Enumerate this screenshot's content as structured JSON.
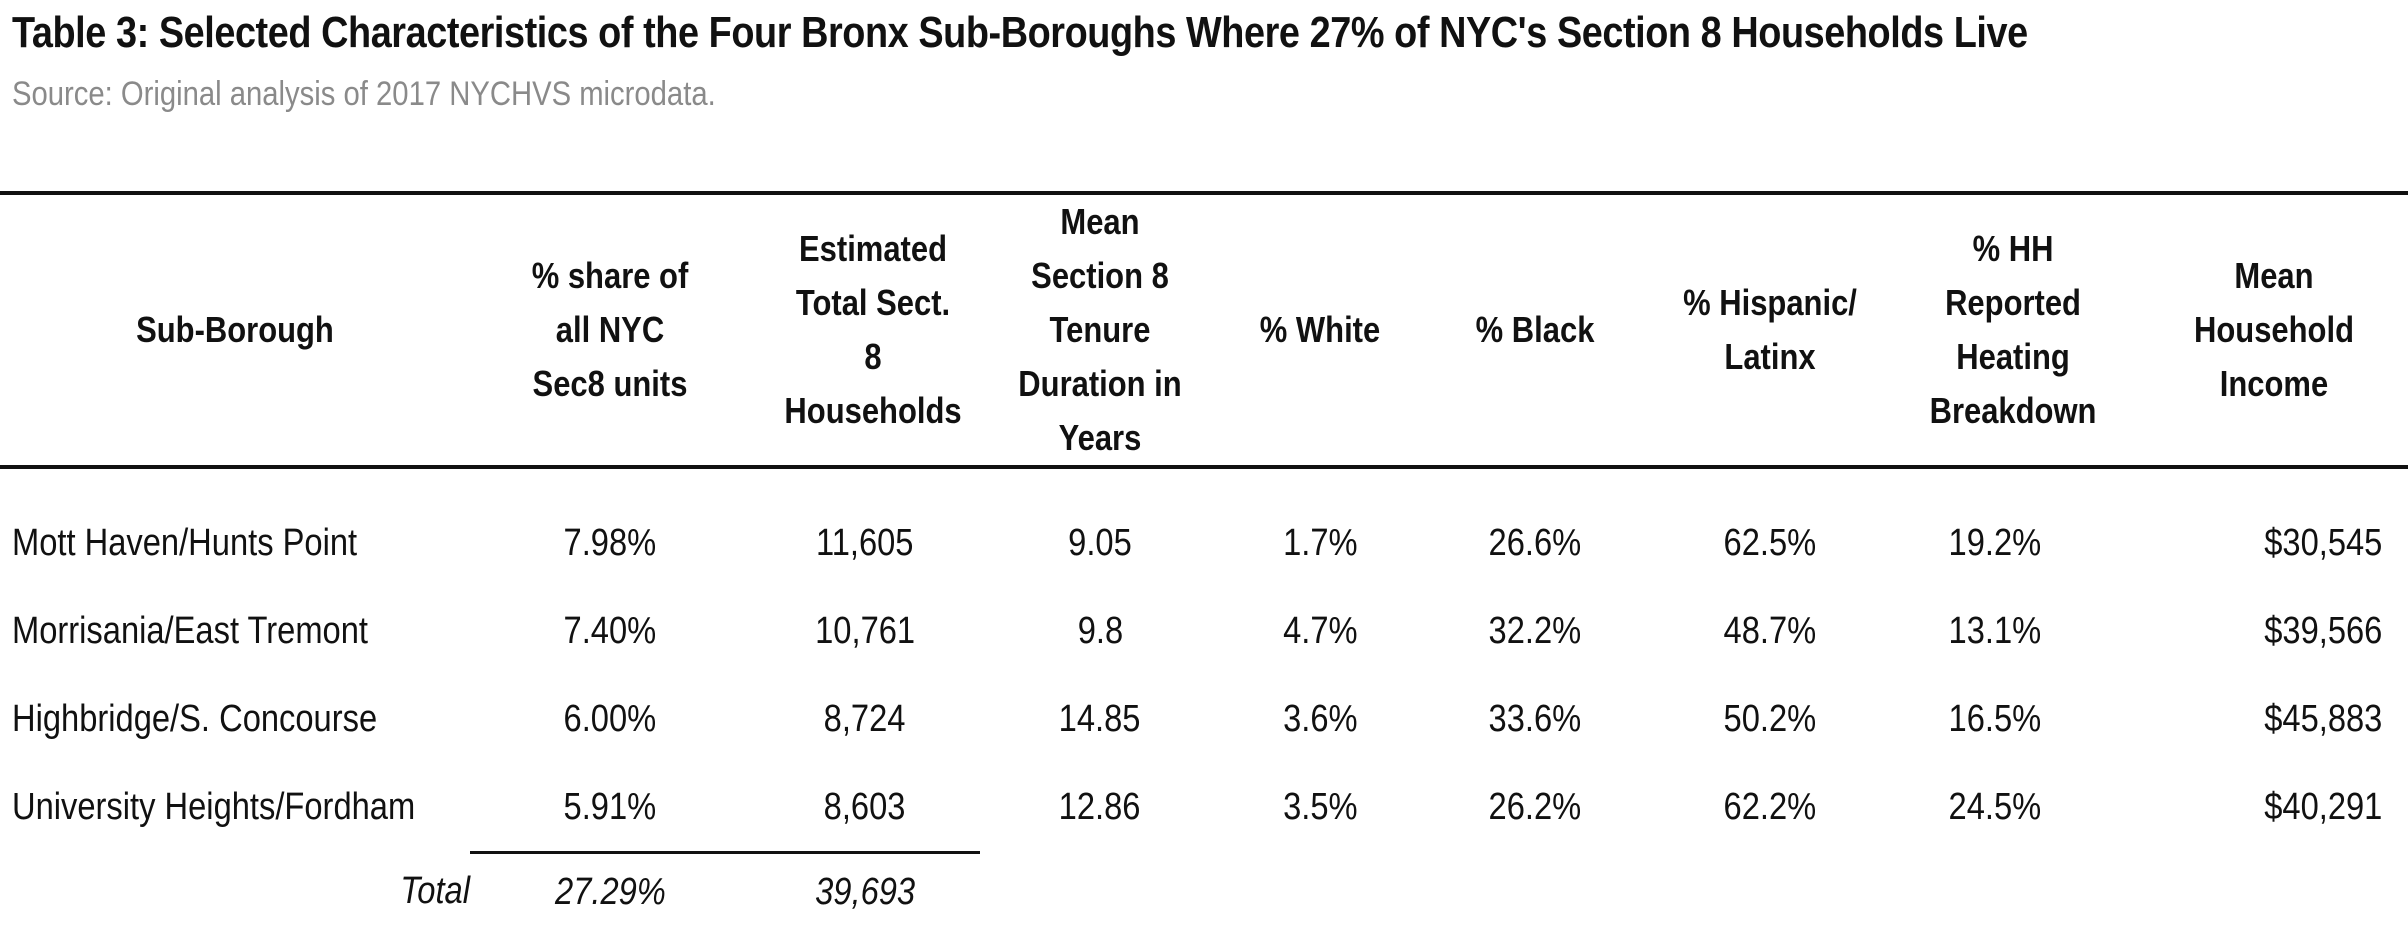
{
  "title": "Table 3: Selected Characteristics of the Four Bronx Sub-Boroughs Where 27% of NYC's Section 8 Households Live",
  "subtitle": "Source: Original analysis of 2017 NYCHVS microdata.",
  "table": {
    "headers": [
      "Sub-Borough",
      "% share of all NYC  Sec8 units",
      "Estimated Total Sect. 8 Households",
      "Mean Section 8 Tenure Duration in Years",
      "% White",
      "% Black",
      "% Hispanic/ Latinx",
      "% HH Reported Heating Breakdown",
      "Mean Household Income"
    ],
    "rows": [
      [
        "Mott Haven/Hunts Point",
        "7.98%",
        "11,605",
        "9.05",
        "1.7%",
        "26.6%",
        "62.5%",
        "19.2%",
        "$30,545"
      ],
      [
        "Morrisania/East Tremont",
        "7.40%",
        "10,761",
        "9.8",
        "4.7%",
        "32.2%",
        "48.7%",
        "13.1%",
        "$39,566"
      ],
      [
        "Highbridge/S. Concourse",
        "6.00%",
        "8,724",
        "14.85",
        "3.6%",
        "33.6%",
        "50.2%",
        "16.5%",
        "$45,883"
      ],
      [
        "University Heights/Fordham",
        "5.91%",
        "8,603",
        "12.86",
        "3.5%",
        "26.2%",
        "62.2%",
        "24.5%",
        "$40,291"
      ]
    ],
    "total": {
      "label": "Total",
      "share": "27.29%",
      "households": "39,693"
    }
  }
}
